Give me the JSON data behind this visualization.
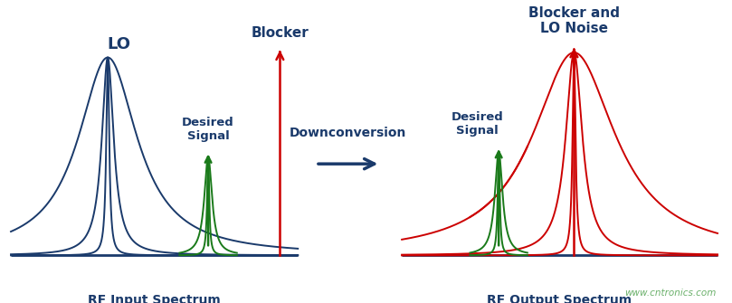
{
  "background_color": "#ffffff",
  "dark_blue": "#1a3a6b",
  "red": "#cc0000",
  "green": "#1a7a1a",
  "watermark_color": "#6ab06a",
  "title_left": "LO",
  "title_blocker_left": "Blocker",
  "title_desired_left": "Desired\nSignal",
  "title_blocker_right": "Blocker and\nLO Noise",
  "title_desired_right": "Desired\nSignal",
  "label_downconversion": "Downconversion",
  "label_left_axis": "RF Input Spectrum",
  "label_right_axis": "RF Output Spectrum",
  "watermark": "www.cntronics.com",
  "figsize": [
    8.09,
    3.35
  ],
  "dpi": 100
}
